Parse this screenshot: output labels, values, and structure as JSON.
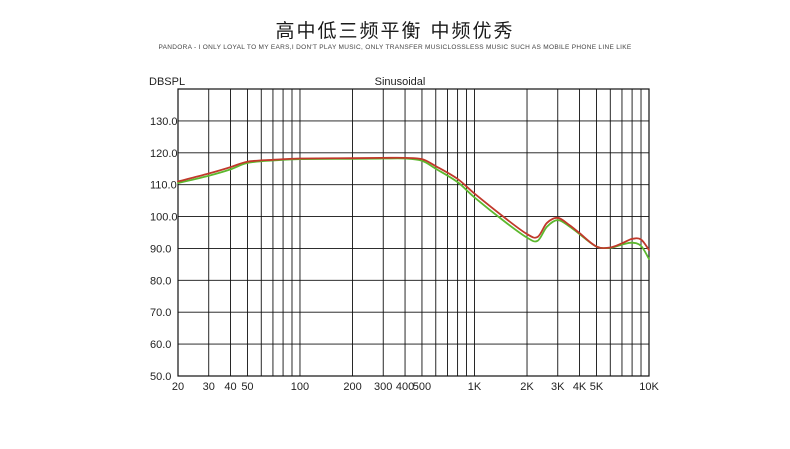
{
  "title": "高中低三频平衡 中频优秀",
  "subtitle": "PANDORA - I ONLY LOYAL TO MY EARS,I DON'T PLAY MUSIC, ONLY TRANSFER MUSICLOSSLESS MUSIC SUCH AS MOBILE PHONE LINE LIKE",
  "chart_data": {
    "type": "line",
    "title": "Sinusoidal",
    "ylabel": "DBSPL",
    "xlabel": "",
    "x_scale": "log",
    "xlim": [
      20,
      10000
    ],
    "ylim": [
      50,
      140
    ],
    "x_ticks": [
      {
        "value": 20,
        "label": "20"
      },
      {
        "value": 30,
        "label": "30"
      },
      {
        "value": 40,
        "label": "40"
      },
      {
        "value": 50,
        "label": "50"
      },
      {
        "value": 100,
        "label": "100"
      },
      {
        "value": 200,
        "label": "200"
      },
      {
        "value": 300,
        "label": "300"
      },
      {
        "value": 400,
        "label": "400"
      },
      {
        "value": 500,
        "label": "500"
      },
      {
        "value": 1000,
        "label": "1K"
      },
      {
        "value": 2000,
        "label": "2K"
      },
      {
        "value": 3000,
        "label": "3K"
      },
      {
        "value": 4000,
        "label": "4K"
      },
      {
        "value": 5000,
        "label": "5K"
      },
      {
        "value": 10000,
        "label": "10K"
      }
    ],
    "y_ticks": [
      {
        "value": 50,
        "label": "50.0"
      },
      {
        "value": 60,
        "label": "60.0"
      },
      {
        "value": 70,
        "label": "70.0"
      },
      {
        "value": 80,
        "label": "80.0"
      },
      {
        "value": 90,
        "label": "90.0"
      },
      {
        "value": 100,
        "label": "100.0"
      },
      {
        "value": 110,
        "label": "110.0"
      },
      {
        "value": 120,
        "label": "120.0"
      },
      {
        "value": 130,
        "label": "130.0"
      }
    ],
    "grid": true,
    "series": [
      {
        "color": "#c0392b",
        "x": [
          20,
          30,
          40,
          50,
          70,
          100,
          200,
          300,
          400,
          500,
          600,
          800,
          1000,
          1500,
          2000,
          2300,
          2600,
          3000,
          3500,
          4000,
          5000,
          6000,
          7000,
          8000,
          9000,
          10000
        ],
        "y": [
          111,
          113.5,
          115.5,
          117.2,
          117.8,
          118.2,
          118.3,
          118.4,
          118.4,
          118,
          115.8,
          111.8,
          107.2,
          99.5,
          94.5,
          93.6,
          98,
          99.6,
          97.3,
          94.8,
          90.6,
          90.3,
          91.6,
          93,
          92.8,
          89.5
        ]
      },
      {
        "color": "#5cb82e",
        "x": [
          20,
          30,
          40,
          50,
          70,
          100,
          200,
          300,
          400,
          500,
          600,
          800,
          1000,
          1500,
          2000,
          2300,
          2600,
          3000,
          3500,
          4000,
          5000,
          6000,
          7000,
          8000,
          9000,
          10000
        ],
        "y": [
          110.5,
          112.8,
          114.8,
          116.8,
          117.6,
          118,
          118.1,
          118.2,
          118.2,
          117.5,
          115,
          110.8,
          106,
          98.3,
          93.4,
          92.4,
          96.8,
          98.9,
          96.9,
          94.5,
          90.6,
          90.2,
          91.2,
          91.8,
          90.8,
          86.7
        ]
      }
    ]
  }
}
